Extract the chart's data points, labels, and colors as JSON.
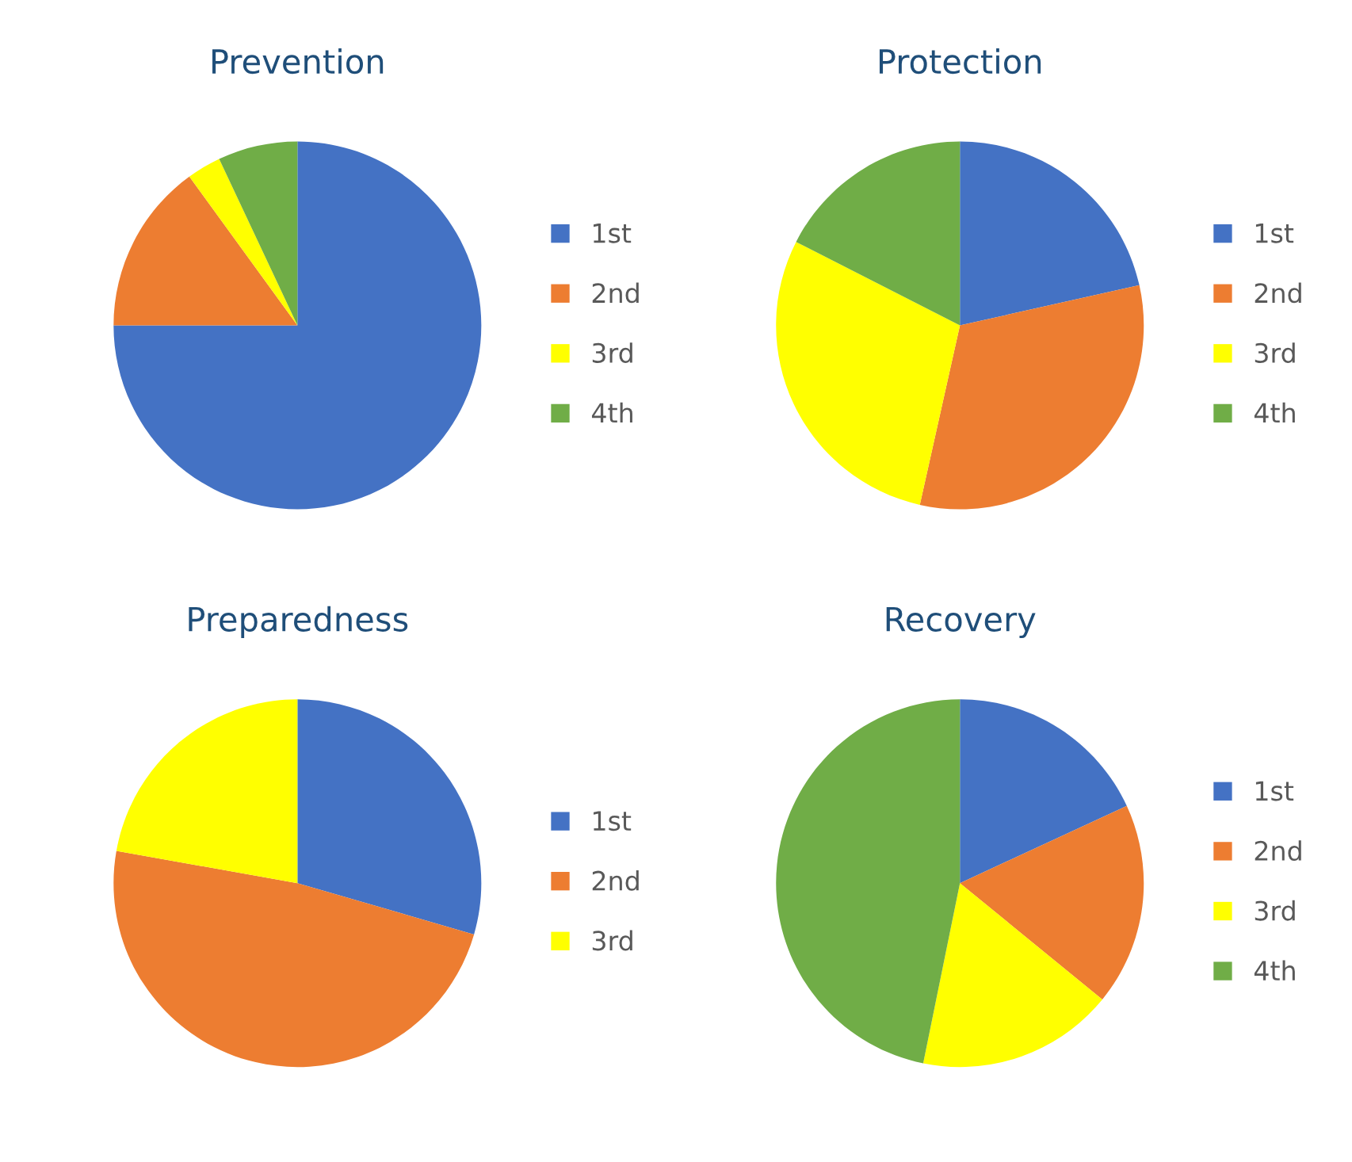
{
  "chart_data": [
    {
      "type": "pie",
      "title": "Prevention",
      "categories": [
        "1st",
        "2nd",
        "3rd",
        "4th"
      ],
      "values": [
        75,
        15,
        3,
        7
      ],
      "colors": [
        "#4472c4",
        "#ed7d31",
        "#ffff00",
        "#70ad47"
      ],
      "legend": "right"
    },
    {
      "type": "pie",
      "title": "Protection",
      "categories": [
        "1st",
        "2nd",
        "3rd",
        "4th"
      ],
      "values": [
        21.5,
        32,
        29,
        17.5
      ],
      "colors": [
        "#4472c4",
        "#ed7d31",
        "#ffff00",
        "#70ad47"
      ],
      "legend": "right"
    },
    {
      "type": "pie",
      "title": "Preparedness",
      "categories": [
        "1st",
        "2nd",
        "3rd"
      ],
      "values": [
        29.5,
        48.3,
        22.2
      ],
      "colors": [
        "#4472c4",
        "#ed7d31",
        "#ffff00"
      ],
      "legend": "right"
    },
    {
      "type": "pie",
      "title": "Recovery",
      "categories": [
        "1st",
        "2nd",
        "3rd",
        "4th"
      ],
      "values": [
        18.1,
        17.8,
        17.3,
        46.8
      ],
      "colors": [
        "#4472c4",
        "#ed7d31",
        "#ffff00",
        "#70ad47"
      ],
      "legend": "right"
    }
  ]
}
